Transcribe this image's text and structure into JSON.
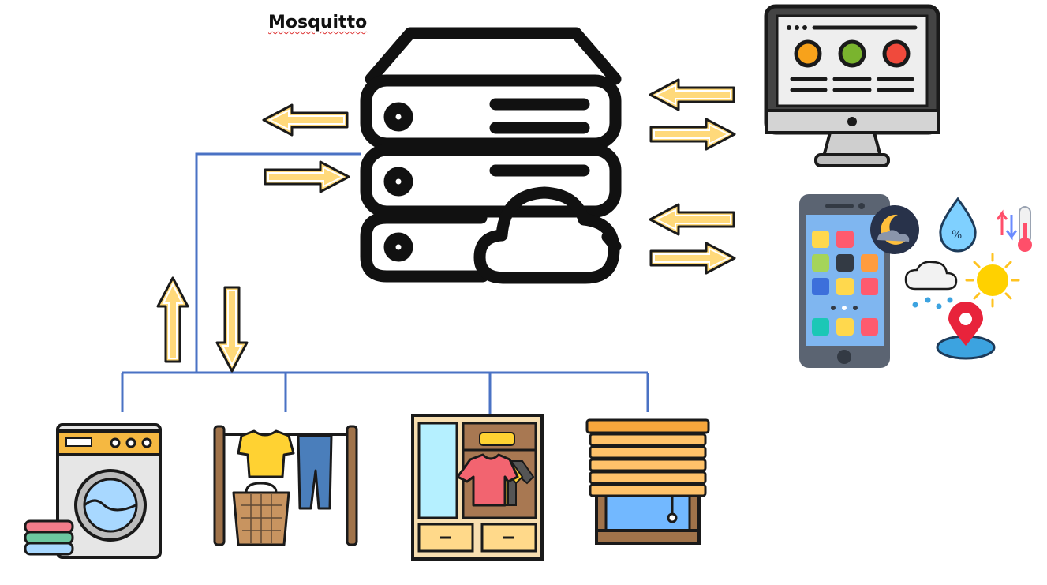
{
  "title": "Mosquitto",
  "colors": {
    "stroke": "#111111",
    "bus_line": "#4a72c4",
    "arrow_fill": "#ffd97a",
    "arrow_outline": "#1a1a1a",
    "monitor_red": "#f04a3c",
    "monitor_green": "#7ab42e",
    "monitor_orange": "#f7a21b"
  },
  "nodes": [
    {
      "id": "broker",
      "icon": "cloud-server-icon"
    },
    {
      "id": "dashboard",
      "icon": "monitor-icon"
    },
    {
      "id": "mobile",
      "icon": "smartphone-weather-icon"
    },
    {
      "id": "washer",
      "icon": "washing-machine-icon"
    },
    {
      "id": "drying-rack",
      "icon": "clothesline-icon"
    },
    {
      "id": "wardrobe",
      "icon": "wardrobe-icon"
    },
    {
      "id": "blinds",
      "icon": "window-blinds-icon"
    }
  ]
}
